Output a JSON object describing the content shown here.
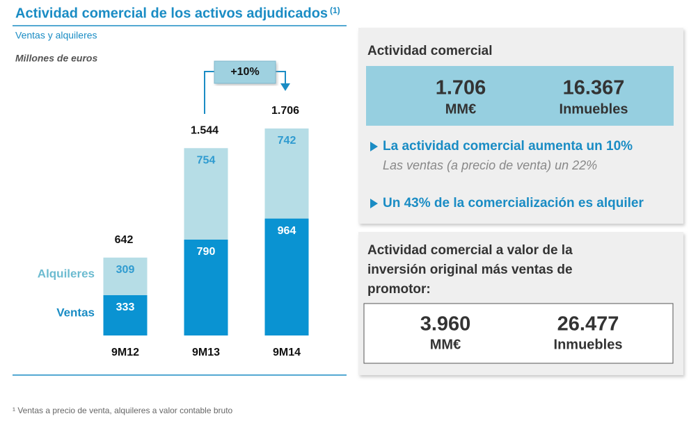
{
  "header": {
    "title": "Actividad comercial de los activos adjudicados",
    "title_note": "(1)",
    "subtitle": "Ventas y alquileres"
  },
  "chart_data": {
    "type": "bar",
    "stacked": true,
    "y_label": "Millones de euros",
    "categories": [
      "9M12",
      "9M13",
      "9M14"
    ],
    "series": [
      {
        "name": "Ventas",
        "color": "#0a93d2",
        "values": [
          333,
          790,
          964
        ]
      },
      {
        "name": "Alquileres",
        "color": "#b6dde6",
        "values": [
          309,
          754,
          742
        ]
      }
    ],
    "totals": {
      "values": [
        642,
        1544,
        1706
      ],
      "value_labels": [
        "642",
        "1.544",
        "1.706"
      ]
    },
    "annotation": "+10%"
  },
  "panel1": {
    "title": "Actividad comercial",
    "stats": [
      {
        "value": "1.706",
        "unit": "MM€"
      },
      {
        "value": "16.367",
        "unit": "Inmuebles"
      }
    ],
    "bullets": [
      {
        "text": "La actividad comercial aumenta un 10%",
        "sub": "Las ventas (a precio de venta) un 22%"
      },
      {
        "text": "Un 43% de la comercialización es alquiler"
      }
    ]
  },
  "panel2": {
    "title_lines": [
      "Actividad comercial a valor de la",
      "inversión original más ventas de",
      "promotor:"
    ],
    "stats": [
      {
        "value": "3.960",
        "unit": "MM€"
      },
      {
        "value": "26.477",
        "unit": "Inmuebles"
      }
    ]
  },
  "footnote": "¹ Ventas a precio de venta, alquileres a valor contable bruto"
}
